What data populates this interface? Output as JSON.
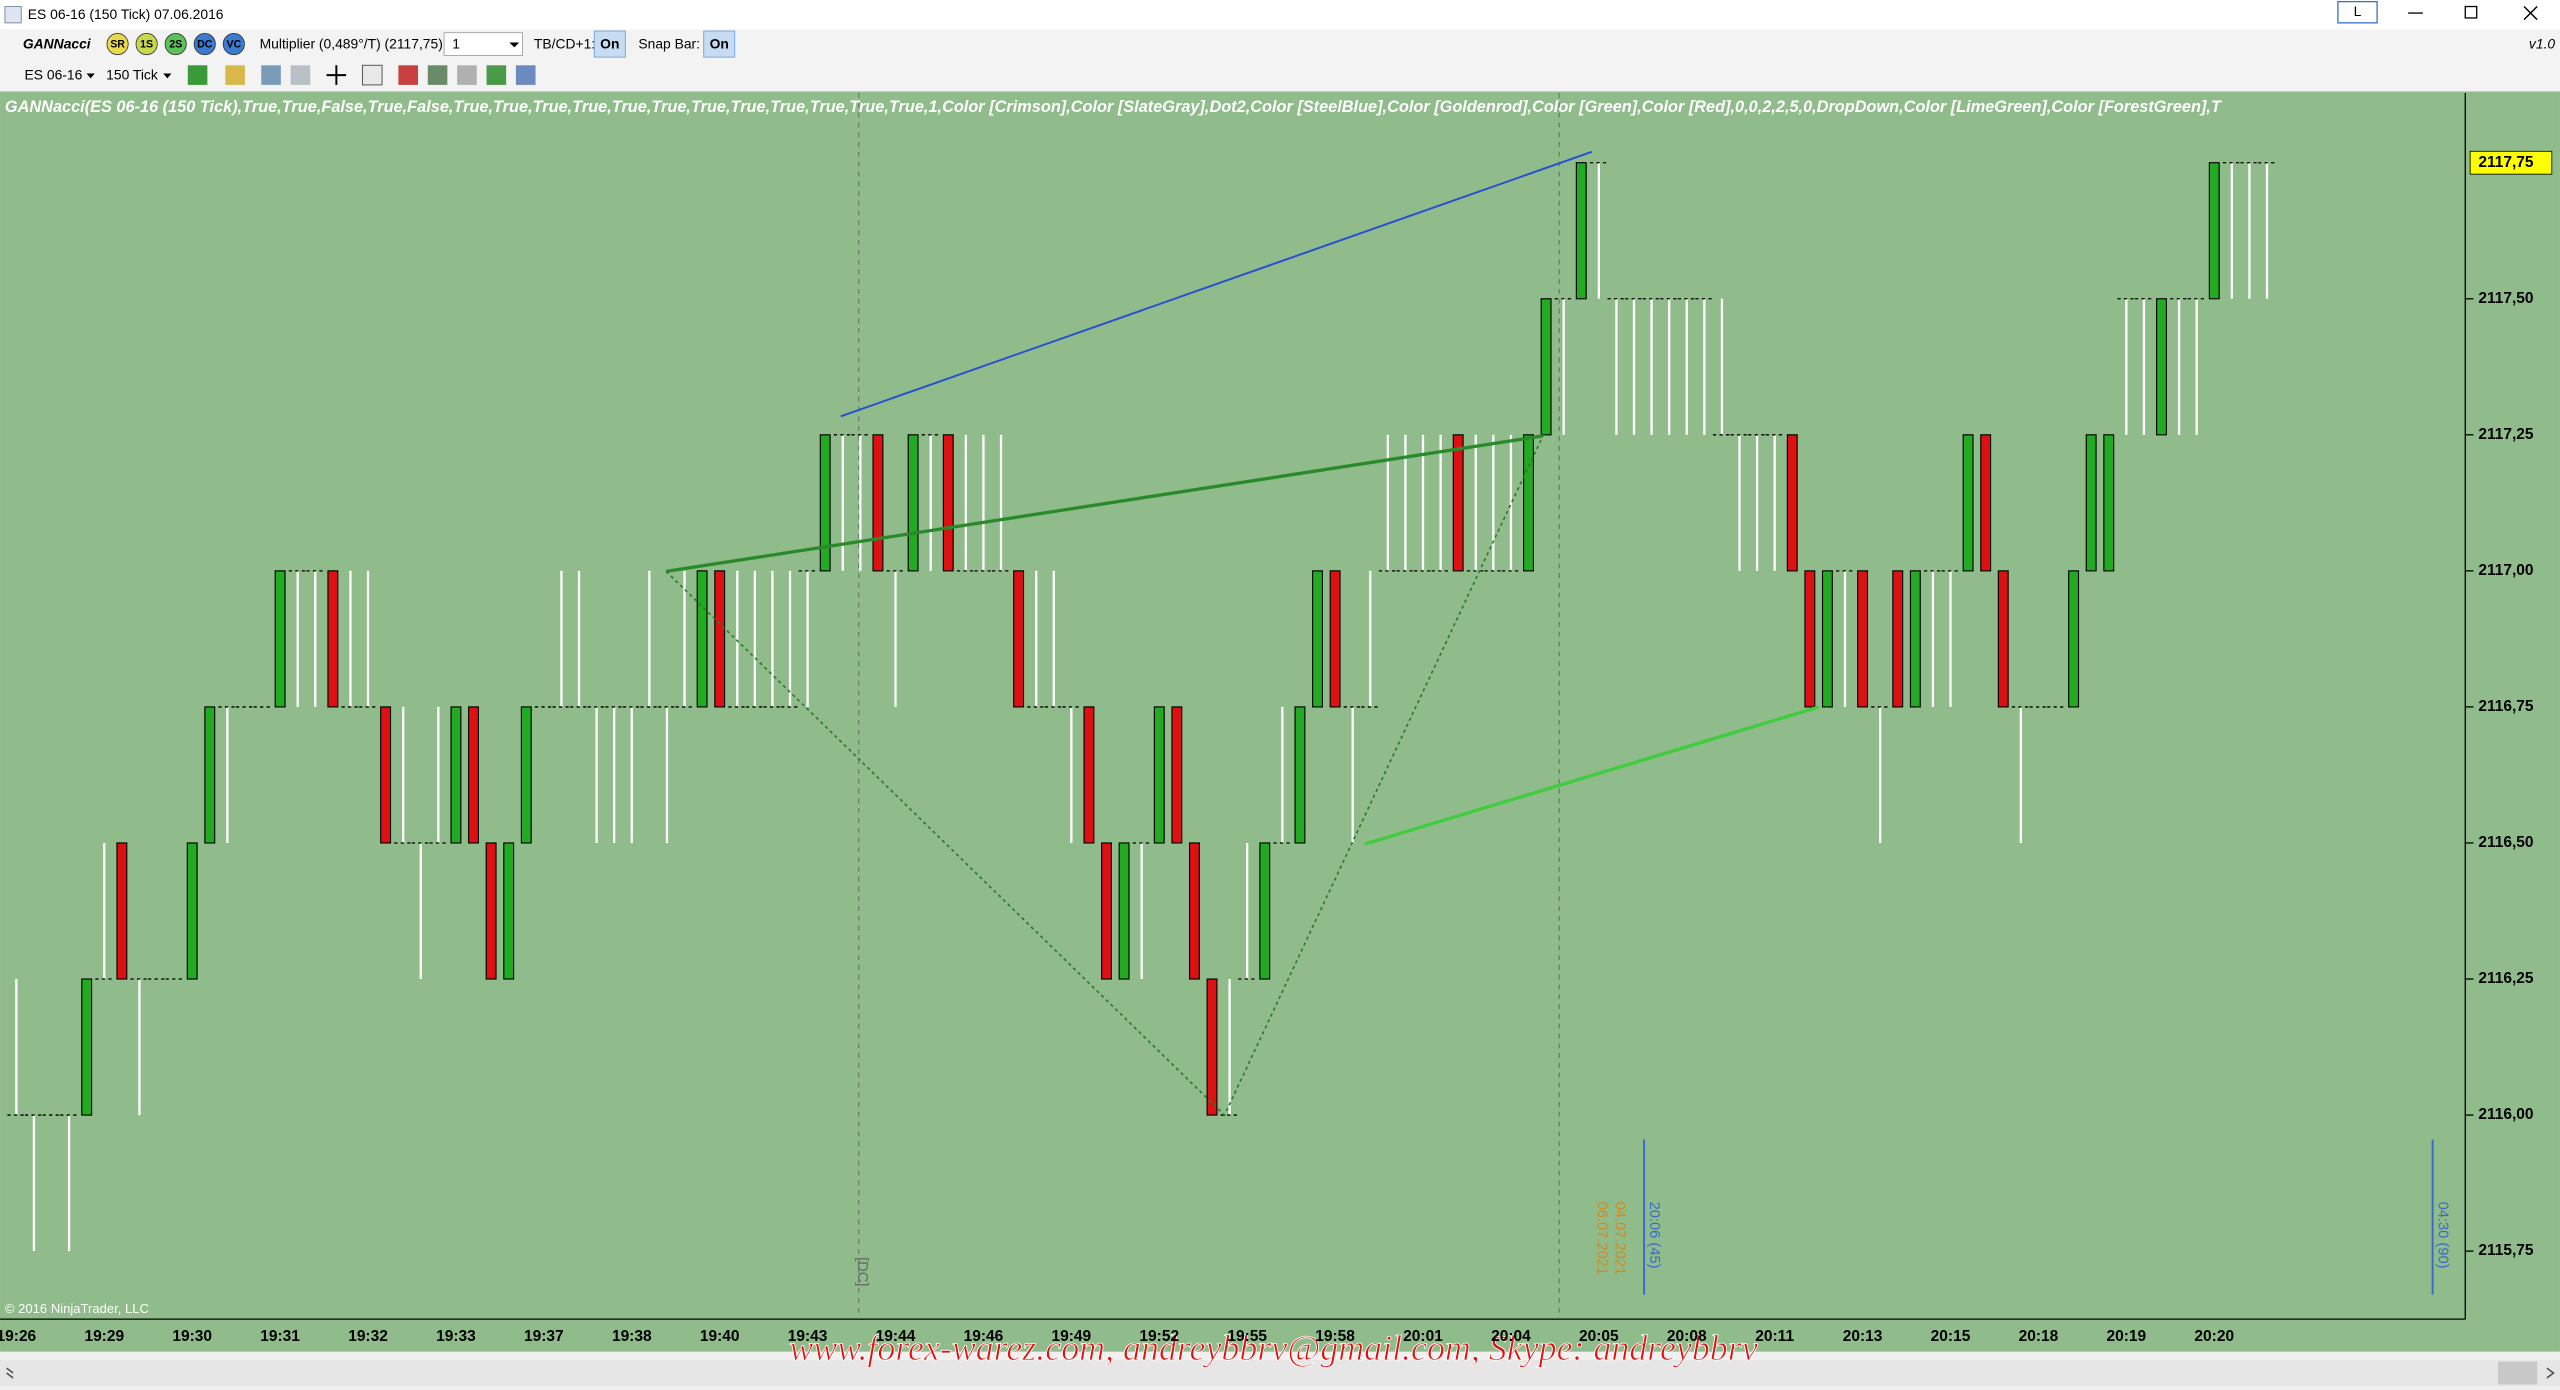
{
  "window": {
    "title": "ES 06-16 (150 Tick)  07.06.2016",
    "button_label": "L",
    "version": "v1.0"
  },
  "toolbar": {
    "indicator_name": "GANNacci",
    "badges": [
      "SR",
      "1S",
      "2S",
      "DC",
      "VC"
    ],
    "multiplier_label": "Multiplier (0,489°/T) (2117,75):",
    "multiplier_value": "1",
    "tbcd_label": "TB/CD+1:",
    "tbcd_state": "On",
    "snap_label": "Snap Bar:",
    "snap_state": "On",
    "instrument": "ES 06-16",
    "period": "150 Tick"
  },
  "indicator_label": "GANNacci(ES 06-16 (150 Tick),True,True,False,True,False,True,True,True,True,True,True,True,True,True,True,True,True,1,Color [Crimson],Color [SlateGray],Dot2,Color [SteelBlue],Color [Goldenrod],Color [Green],Color [Red],0,0,2,2,5,0,DropDown,Color [LimeGreen],Color [ForestGreen],T",
  "copyright": "© 2016 NinjaTrader, LLC",
  "watermark": "www.forex-warez.com, andreybbrv@gmail.com, Skype: andreybbrv",
  "drawing_labels": [
    "[DC]",
    "06.07.2021",
    "04.07.2021",
    "20:06 (45)",
    "04:30 (90)"
  ],
  "chart_data": {
    "type": "candlestick",
    "background": "#8fbc8a",
    "up_color": "#22aa22",
    "down_color": "#dd1111",
    "doji_color": "#ffffff",
    "ylim": [
      2115.625,
      2117.878
    ],
    "yticks": [
      {
        "value": 2115.75,
        "label": "2115,75"
      },
      {
        "value": 2116,
        "label": "2116,00"
      },
      {
        "value": 2116.25,
        "label": "2116,25"
      },
      {
        "value": 2116.5,
        "label": "2116,50"
      },
      {
        "value": 2116.75,
        "label": "2116,75"
      },
      {
        "value": 2117,
        "label": "2117,00"
      },
      {
        "value": 2117.25,
        "label": "2117,25"
      },
      {
        "value": 2117.5,
        "label": "2117,50"
      }
    ],
    "last_price": {
      "value": 2117.75,
      "label": "2117,75"
    },
    "categories": [
      "19:26",
      null,
      null,
      null,
      null,
      "19:29",
      null,
      null,
      null,
      null,
      "19:30",
      null,
      null,
      null,
      null,
      "19:31",
      null,
      null,
      null,
      null,
      "19:32",
      null,
      null,
      null,
      null,
      "19:33",
      null,
      null,
      null,
      null,
      "19:37",
      null,
      null,
      null,
      null,
      "19:38",
      null,
      null,
      null,
      null,
      "19:40",
      null,
      null,
      null,
      null,
      "19:43",
      null,
      null,
      null,
      null,
      "19:44",
      null,
      null,
      null,
      null,
      "19:46",
      null,
      null,
      null,
      null,
      "19:49",
      null,
      null,
      null,
      null,
      "19:52",
      null,
      null,
      null,
      null,
      "19:55",
      null,
      null,
      null,
      null,
      "19:58",
      null,
      null,
      null,
      null,
      "20:01",
      null,
      null,
      null,
      null,
      "20:04",
      null,
      null,
      null,
      null,
      "20:05",
      null,
      null,
      null,
      null,
      "20:08",
      null,
      null,
      null,
      null,
      "20:11",
      null,
      null,
      null,
      null,
      "20:13",
      null,
      null,
      null,
      null,
      "20:15",
      null,
      null,
      null,
      null,
      "20:18",
      null,
      null,
      null,
      null,
      "20:19",
      null,
      null,
      null,
      null,
      "20:20",
      null,
      null,
      null
    ],
    "open": [
      2116,
      2116,
      2116,
      2116,
      2116,
      2116.25,
      2116.5,
      2116.25,
      2116.25,
      2116.25,
      2116.25,
      2116.5,
      2116.75,
      2116.75,
      2116.75,
      2116.75,
      2117,
      2117,
      2117,
      2116.75,
      2116.75,
      2116.75,
      2116.5,
      2116.5,
      2116.5,
      2116.5,
      2116.75,
      2116.5,
      2116.25,
      2116.5,
      2116.75,
      2116.75,
      2116.75,
      2116.75,
      2116.75,
      2116.75,
      2116.75,
      2116.75,
      2116.75,
      2116.75,
      2117,
      2116.75,
      2116.75,
      2116.75,
      2116.75,
      2117,
      2117,
      2117.25,
      2117.25,
      2117.25,
      2117,
      2117,
      2117.25,
      2117.25,
      2117,
      2117,
      2117,
      2117,
      2116.75,
      2116.75,
      2116.75,
      2116.75,
      2116.5,
      2116.25,
      2116.5,
      2116.5,
      2116.75,
      2116.5,
      2116.25,
      2116,
      2116.25,
      2116.25,
      2116.5,
      2116.5,
      2116.75,
      2117,
      2116.75,
      2116.75,
      2117,
      2117,
      2117,
      2117,
      2117.25,
      2117,
      2117,
      2117,
      2117,
      2117.25,
      2117.5,
      2117.5,
      2117.75,
      2117.5,
      2117.5,
      2117.5,
      2117.5,
      2117.5,
      2117.5,
      2117.25,
      2117.25,
      2117.25,
      2117.25,
      2117.25,
      2117,
      2116.75,
      2117,
      2117,
      2116.75,
      2117,
      2116.75,
      2117,
      2117,
      2117,
      2117.25,
      2117,
      2116.75,
      2116.75,
      2116.75,
      2116.75,
      2117,
      2117,
      2117.5,
      2117.5,
      2117.25,
      2117.5,
      2117.5,
      2117.5,
      2117.75,
      2117.75,
      2117.75
    ],
    "high": [
      2116.25,
      2116,
      2116,
      2116,
      2116.25,
      2116.5,
      2116.5,
      2116.25,
      2116.25,
      2116.25,
      2116.5,
      2116.75,
      2116.75,
      2116.75,
      2116.75,
      2117,
      2117,
      2117,
      2117,
      2117,
      2117,
      2116.75,
      2116.75,
      2116.5,
      2116.75,
      2116.75,
      2116.75,
      2116.5,
      2116.5,
      2116.75,
      2116.75,
      2117,
      2117,
      2116.75,
      2116.75,
      2116.75,
      2117,
      2116.75,
      2117,
      2117,
      2117,
      2117,
      2117,
      2117,
      2117,
      2117,
      2117.25,
      2117.25,
      2117.25,
      2117.25,
      2117,
      2117.25,
      2117.25,
      2117.25,
      2117.25,
      2117.25,
      2117.25,
      2117,
      2117,
      2117,
      2116.75,
      2116.75,
      2116.5,
      2116.5,
      2116.5,
      2116.75,
      2116.75,
      2116.5,
      2116.25,
      2116.25,
      2116.5,
      2116.5,
      2116.75,
      2116.75,
      2117,
      2117,
      2116.75,
      2117,
      2117.25,
      2117.25,
      2117.25,
      2117.25,
      2117.25,
      2117.25,
      2117.25,
      2117.25,
      2117.25,
      2117.5,
      2117.5,
      2117.75,
      2117.75,
      2117.5,
      2117.5,
      2117.5,
      2117.5,
      2117.5,
      2117.5,
      2117.5,
      2117.25,
      2117.25,
      2117.25,
      2117.25,
      2117,
      2117,
      2117,
      2117,
      2116.75,
      2117,
      2117,
      2117,
      2117,
      2117.25,
      2117.25,
      2117,
      2116.75,
      2116.75,
      2116.75,
      2117,
      2117.25,
      2117.25,
      2117.5,
      2117.5,
      2117.5,
      2117.5,
      2117.5,
      2117.75,
      2117.75,
      2117.75,
      2117.75
    ],
    "low": [
      2116,
      2115.75,
      2116,
      2115.75,
      2116,
      2116.25,
      2116.25,
      2116,
      2116.25,
      2116.25,
      2116.25,
      2116.5,
      2116.5,
      2116.75,
      2116.75,
      2116.75,
      2116.75,
      2116.75,
      2116.75,
      2116.75,
      2116.75,
      2116.5,
      2116.5,
      2116.25,
      2116.5,
      2116.5,
      2116.5,
      2116.25,
      2116.25,
      2116.5,
      2116.75,
      2116.75,
      2116.75,
      2116.5,
      2116.5,
      2116.5,
      2116.75,
      2116.5,
      2116.75,
      2116.75,
      2116.75,
      2116.75,
      2116.75,
      2116.75,
      2116.75,
      2116.75,
      2117,
      2117,
      2117,
      2117,
      2116.75,
      2117,
      2117,
      2117,
      2117,
      2117,
      2117,
      2116.75,
      2116.75,
      2116.75,
      2116.5,
      2116.5,
      2116.25,
      2116.25,
      2116.25,
      2116.5,
      2116.5,
      2116.25,
      2116,
      2116,
      2116.25,
      2116.25,
      2116.5,
      2116.5,
      2116.75,
      2116.75,
      2116.5,
      2116.75,
      2117,
      2117,
      2117,
      2117,
      2117,
      2117,
      2117,
      2117,
      2117,
      2117.25,
      2117.25,
      2117.5,
      2117.5,
      2117.25,
      2117.25,
      2117.25,
      2117.25,
      2117.25,
      2117.25,
      2117.25,
      2117,
      2117,
      2117,
      2117,
      2116.75,
      2116.75,
      2116.75,
      2116.75,
      2116.5,
      2116.75,
      2116.75,
      2116.75,
      2116.75,
      2117,
      2117,
      2116.75,
      2116.5,
      2116.75,
      2116.75,
      2116.75,
      2117,
      2117,
      2117.25,
      2117.25,
      2117.25,
      2117.25,
      2117.25,
      2117.5,
      2117.5,
      2117.5,
      2117.5
    ],
    "close": [
      2116,
      2116,
      2116,
      2116,
      2116.25,
      2116.25,
      2116.25,
      2116.25,
      2116.25,
      2116.25,
      2116.5,
      2116.75,
      2116.75,
      2116.75,
      2116.75,
      2117,
      2117,
      2117,
      2116.75,
      2116.75,
      2116.75,
      2116.5,
      2116.5,
      2116.5,
      2116.5,
      2116.75,
      2116.5,
      2116.25,
      2116.5,
      2116.75,
      2116.75,
      2116.75,
      2116.75,
      2116.75,
      2116.75,
      2116.75,
      2116.75,
      2116.75,
      2116.75,
      2117,
      2116.75,
      2116.75,
      2116.75,
      2116.75,
      2116.75,
      2117,
      2117.25,
      2117.25,
      2117.25,
      2117,
      2117,
      2117.25,
      2117.25,
      2117,
      2117,
      2117,
      2117,
      2116.75,
      2116.75,
      2116.75,
      2116.75,
      2116.5,
      2116.25,
      2116.5,
      2116.5,
      2116.75,
      2116.5,
      2116.25,
      2116,
      2116,
      2116.25,
      2116.5,
      2116.5,
      2116.75,
      2117,
      2116.75,
      2116.75,
      2116.75,
      2117,
      2117,
      2117,
      2117,
      2117,
      2117,
      2117,
      2117,
      2117.25,
      2117.5,
      2117.5,
      2117.75,
      2117.75,
      2117.5,
      2117.5,
      2117.5,
      2117.5,
      2117.5,
      2117.5,
      2117.25,
      2117.25,
      2117.25,
      2117.25,
      2117,
      2116.75,
      2117,
      2117,
      2116.75,
      2116.75,
      2116.75,
      2117,
      2117,
      2117,
      2117.25,
      2117,
      2116.75,
      2116.75,
      2116.75,
      2116.75,
      2117,
      2117.25,
      2117.25,
      2117.5,
      2117.5,
      2117.5,
      2117.5,
      2117.5,
      2117.75,
      2117.75,
      2117.75,
      2117.75
    ]
  }
}
